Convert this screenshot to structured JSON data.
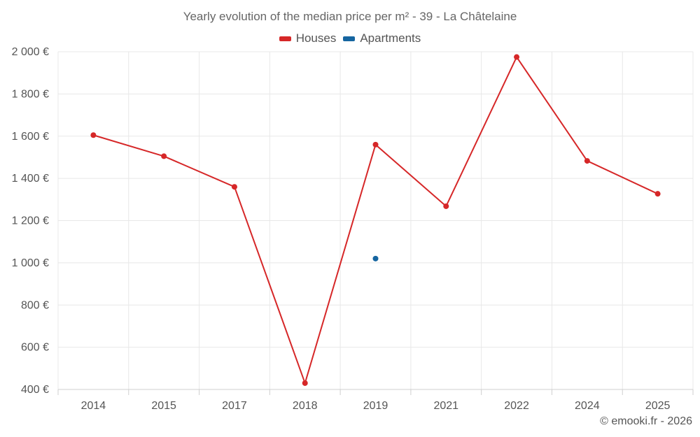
{
  "chart_data": {
    "type": "line",
    "title": "Yearly evolution of the median price per m² - 39 - La Châtelaine",
    "categories": [
      "2014",
      "2015",
      "2017",
      "2018",
      "2019",
      "2021",
      "2022",
      "2024",
      "2025"
    ],
    "series": [
      {
        "name": "Houses",
        "color": "#d62728",
        "values": [
          1605,
          1505,
          1360,
          430,
          1560,
          1268,
          1975,
          1483,
          1327
        ]
      },
      {
        "name": "Apartments",
        "color": "#1565a0",
        "values": [
          null,
          null,
          null,
          null,
          1020,
          null,
          null,
          null,
          null
        ]
      }
    ],
    "ylim": [
      400,
      2000
    ],
    "yticks": [
      400,
      600,
      800,
      1000,
      1200,
      1400,
      1600,
      1800,
      2000
    ],
    "ytick_labels": [
      "400 €",
      "600 €",
      "800 €",
      "1 000 €",
      "1 200 €",
      "1 400 €",
      "1 600 €",
      "1 800 €",
      "2 000 €"
    ],
    "xlabel": "",
    "ylabel": "",
    "grid": true,
    "legend_position": "top-center"
  },
  "credit": "© emooki.fr - 2026"
}
